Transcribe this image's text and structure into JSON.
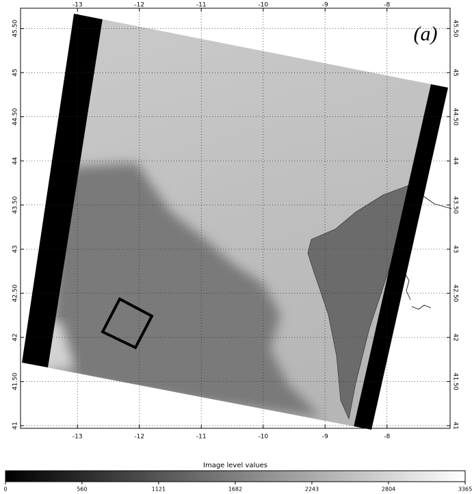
{
  "map": {
    "label": "(a)",
    "xlim": [
      -13.92,
      -6.98
    ],
    "ylim": [
      40.97,
      45.73
    ],
    "xticks": [
      -13,
      -12,
      -11,
      -10,
      -9,
      -8
    ],
    "yticks": [
      {
        "value": 45.5,
        "label": "45.50"
      },
      45,
      {
        "value": 44.5,
        "label": "44.50"
      },
      44,
      {
        "value": 43.5,
        "label": "43.50"
      },
      43,
      {
        "value": 42.5,
        "label": "42.50"
      },
      42,
      {
        "value": 41.5,
        "label": "41.50"
      },
      41
    ],
    "grid": true
  },
  "colorbar": {
    "label": "Image level values",
    "lim": [
      0,
      3365
    ],
    "ticks": [
      0,
      560,
      1121,
      1682,
      2243,
      2804,
      3365
    ]
  }
}
